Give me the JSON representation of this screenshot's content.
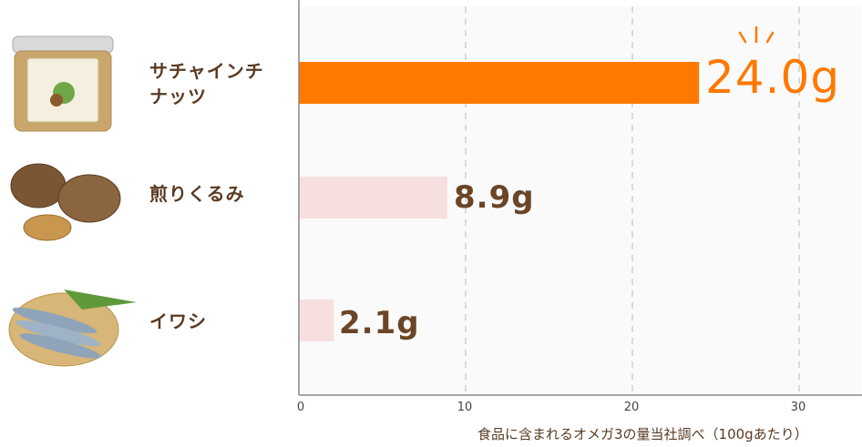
{
  "chart_data": {
    "type": "bar",
    "orientation": "horizontal",
    "categories": [
      "サチャインチ\nナッツ",
      "煎りくるみ",
      "イワシ"
    ],
    "values": [
      24.0,
      8.9,
      2.1
    ],
    "value_labels": [
      "24.0g",
      "8.9g",
      "2.1g"
    ],
    "xlim": [
      0,
      34
    ],
    "xticks": [
      0,
      10,
      20,
      30
    ],
    "grid": "vertical-dashed",
    "colors": {
      "highlight": "#ff7900",
      "base": "#f7dfe0",
      "grid": "#cfcfcf",
      "panel": "#fafafa"
    }
  },
  "footnote": "食品に含まれるオメガ3の量当社調べ（100gあたり）",
  "icons": [
    "jar-icon",
    "walnut-icon",
    "sardine-icon",
    "sparkle-icon"
  ]
}
